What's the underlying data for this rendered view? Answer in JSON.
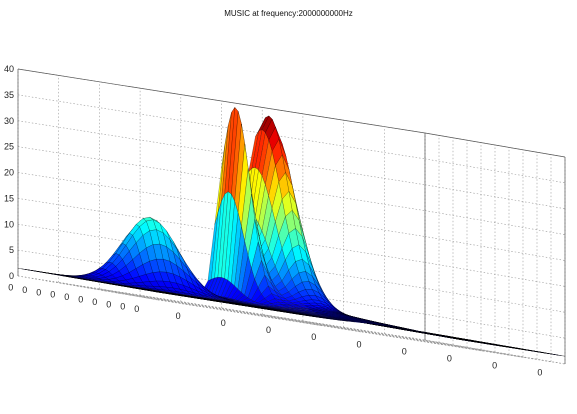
{
  "figure": {
    "title": "MUSIC at frequency:2000000000Hz"
  },
  "chart_data": {
    "type": "surface",
    "title": "MUSIC at frequency:2000000000Hz",
    "xlabel": "",
    "ylabel": "",
    "zlabel": "",
    "zlim": [
      0,
      40
    ],
    "z_ticks": [
      "0",
      "5",
      "10",
      "15",
      "20",
      "25",
      "30",
      "35",
      "40"
    ],
    "x_tick_labels": [
      "0",
      "0",
      "0",
      "0",
      "0",
      "0",
      "0",
      "0",
      "0"
    ],
    "y_tick_labels": [
      "0",
      "0",
      "0",
      "0",
      "0",
      "0",
      "0",
      "0",
      "0",
      "0"
    ],
    "grid": true,
    "colormap": "jet",
    "floor_level": 1.5,
    "peaks": [
      {
        "value": 37,
        "note": "sharp ridge peak"
      },
      {
        "value": 36,
        "note": "right peak"
      },
      {
        "value": 16,
        "note": "left bump"
      }
    ],
    "colors": {
      "surface_low": "#0a0a7a",
      "surface_high": "#a80000",
      "grid": "#999999",
      "mesh": "#000000"
    }
  }
}
